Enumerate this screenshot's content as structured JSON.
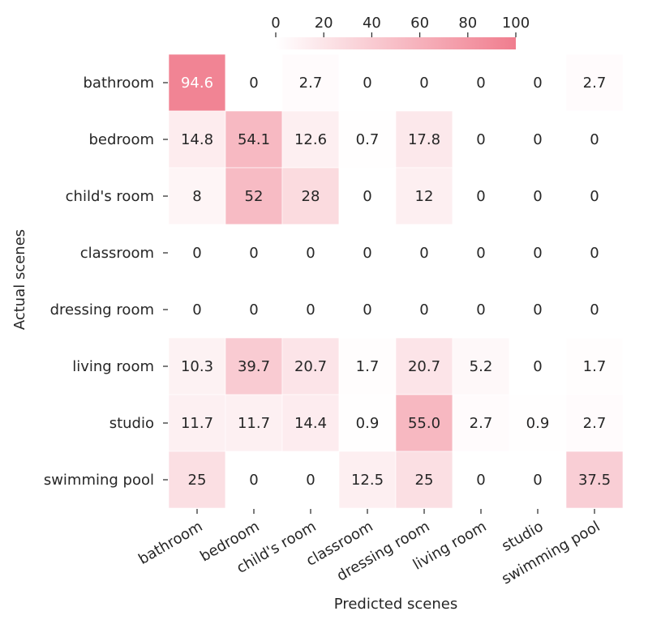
{
  "chart_data": {
    "type": "heatmap",
    "xlabel": "Predicted scenes",
    "ylabel": "Actual scenes",
    "x_categories": [
      "bathroom",
      "bedroom",
      "child's room",
      "classroom",
      "dressing room",
      "living room",
      "studio",
      "swimming pool"
    ],
    "y_categories": [
      "bathroom",
      "bedroom",
      "child's room",
      "classroom",
      "dressing room",
      "living room",
      "studio",
      "swimming pool"
    ],
    "values": [
      [
        94.6,
        0,
        2.7,
        0,
        0,
        0,
        0,
        2.7
      ],
      [
        14.8,
        54.1,
        12.6,
        0.7,
        17.8,
        0,
        0,
        0
      ],
      [
        8,
        52,
        28,
        0,
        12,
        0,
        0,
        0
      ],
      [
        0,
        0,
        0,
        0,
        0,
        0,
        0,
        0
      ],
      [
        0,
        0,
        0,
        0,
        0,
        0,
        0,
        0
      ],
      [
        10.3,
        39.7,
        20.7,
        1.7,
        20.7,
        5.2,
        0,
        1.7
      ],
      [
        11.7,
        11.7,
        14.4,
        0.9,
        55.0,
        2.7,
        0.9,
        2.7
      ],
      [
        25,
        0,
        0,
        12.5,
        25,
        0,
        0,
        37.5
      ]
    ],
    "cell_labels": [
      [
        "94.6",
        "0",
        "2.7",
        "0",
        "0",
        "0",
        "0",
        "2.7"
      ],
      [
        "14.8",
        "54.1",
        "12.6",
        "0.7",
        "17.8",
        "0",
        "0",
        "0"
      ],
      [
        "8",
        "52",
        "28",
        "0",
        "12",
        "0",
        "0",
        "0"
      ],
      [
        "0",
        "0",
        "0",
        "0",
        "0",
        "0",
        "0",
        "0"
      ],
      [
        "0",
        "0",
        "0",
        "0",
        "0",
        "0",
        "0",
        "0"
      ],
      [
        "10.3",
        "39.7",
        "20.7",
        "1.7",
        "20.7",
        "5.2",
        "0",
        "1.7"
      ],
      [
        "11.7",
        "11.7",
        "14.4",
        "0.9",
        "55.0",
        "2.7",
        "0.9",
        "2.7"
      ],
      [
        "25",
        "0",
        "0",
        "12.5",
        "25",
        "0",
        "0",
        "37.5"
      ]
    ],
    "colorbar": {
      "min": 0,
      "max": 100,
      "ticks": [
        "0",
        "20",
        "40",
        "60",
        "80",
        "100"
      ],
      "position": "top",
      "color_low": "#ffffff",
      "color_high": "#f07d8e"
    },
    "grid": false
  }
}
